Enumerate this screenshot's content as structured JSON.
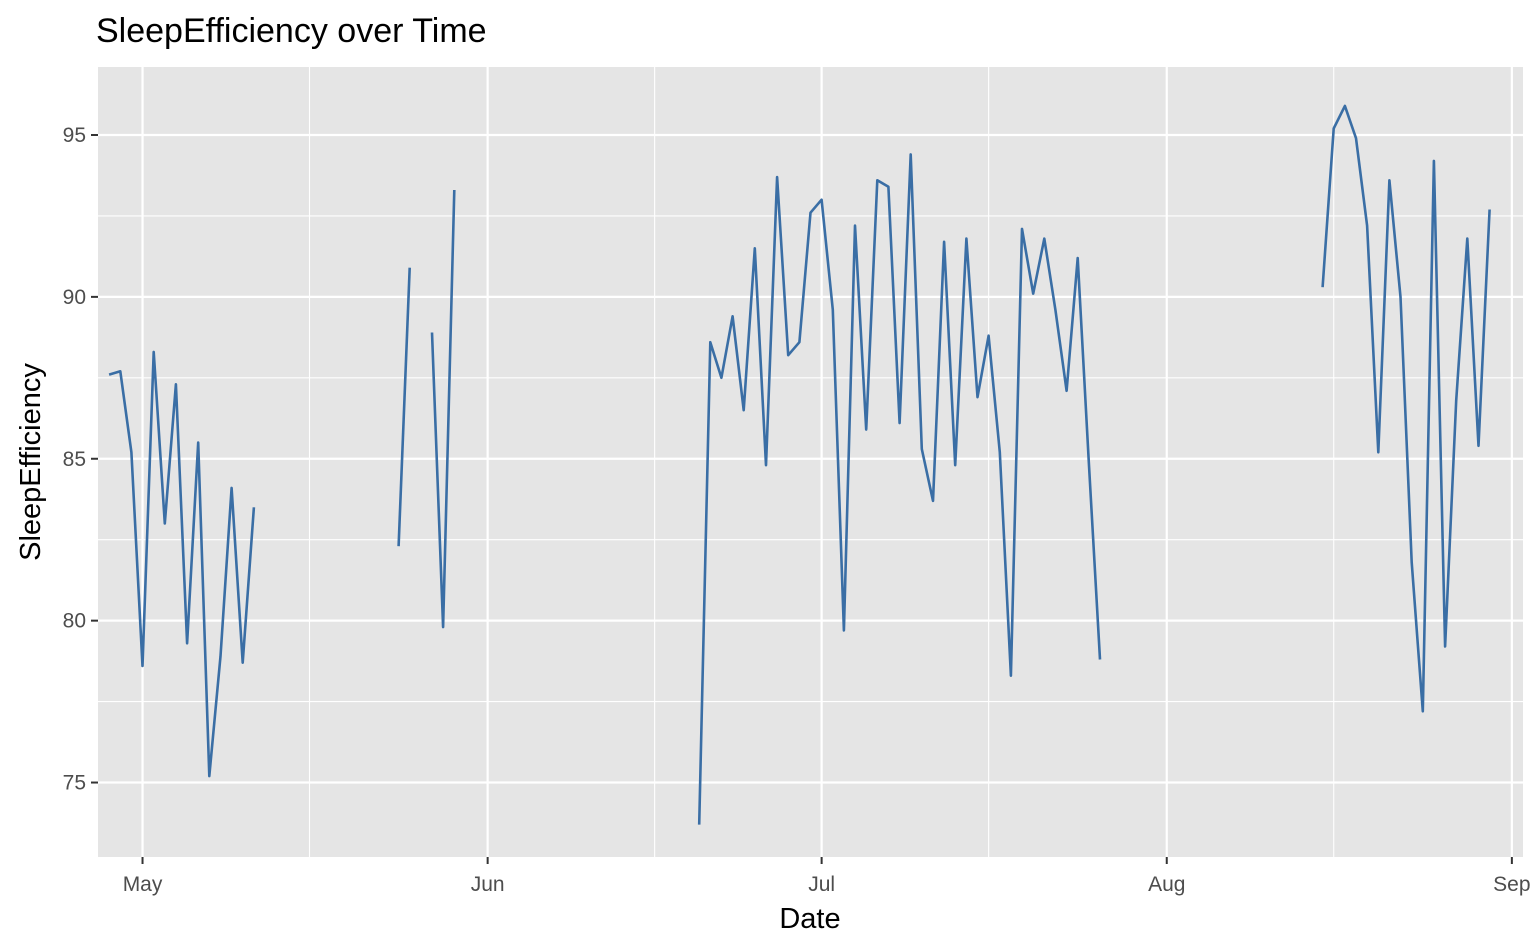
{
  "chart_data": {
    "type": "line",
    "title": "SleepEfficiency over Time",
    "xlabel": "Date",
    "ylabel": "SleepEfficiency",
    "x_range": [
      "2023-04-27",
      "2023-09-02"
    ],
    "ylim": [
      72.7,
      97.1
    ],
    "x_ticks": [
      {
        "date": "2023-05-01",
        "label": "May"
      },
      {
        "date": "2023-06-01",
        "label": "Jun"
      },
      {
        "date": "2023-07-01",
        "label": "Jul"
      },
      {
        "date": "2023-08-01",
        "label": "Aug"
      },
      {
        "date": "2023-09-01",
        "label": "Sep"
      }
    ],
    "x_minor_ticks": [
      "2023-05-16",
      "2023-06-16",
      "2023-07-16",
      "2023-08-16"
    ],
    "y_ticks": [
      75,
      80,
      85,
      90,
      95
    ],
    "y_minor_ticks": [
      77.5,
      82.5,
      87.5,
      92.5
    ],
    "grid": true,
    "colors": {
      "line": "#3a6ea5",
      "panel": "#e5e5e5",
      "grid": "#ffffff"
    },
    "series": [
      {
        "segments": [
          [
            [
              "2023-04-28",
              87.6
            ],
            [
              "2023-04-29",
              87.7
            ],
            [
              "2023-04-30",
              85.2
            ],
            [
              "2023-05-01",
              78.6
            ],
            [
              "2023-05-02",
              88.3
            ],
            [
              "2023-05-03",
              83.0
            ],
            [
              "2023-05-04",
              87.3
            ],
            [
              "2023-05-05",
              79.3
            ],
            [
              "2023-05-06",
              85.5
            ],
            [
              "2023-05-07",
              75.2
            ],
            [
              "2023-05-08",
              78.9
            ],
            [
              "2023-05-09",
              84.1
            ],
            [
              "2023-05-10",
              78.7
            ],
            [
              "2023-05-11",
              83.5
            ]
          ],
          [
            [
              "2023-05-24",
              82.3
            ],
            [
              "2023-05-25",
              90.9
            ]
          ],
          [
            [
              "2023-05-27",
              88.9
            ],
            [
              "2023-05-28",
              79.8
            ],
            [
              "2023-05-29",
              93.3
            ]
          ],
          [
            [
              "2023-06-20",
              73.7
            ],
            [
              "2023-06-21",
              88.6
            ],
            [
              "2023-06-22",
              87.5
            ],
            [
              "2023-06-23",
              89.4
            ],
            [
              "2023-06-24",
              86.5
            ],
            [
              "2023-06-25",
              91.5
            ],
            [
              "2023-06-26",
              84.8
            ],
            [
              "2023-06-27",
              93.7
            ],
            [
              "2023-06-28",
              88.2
            ],
            [
              "2023-06-29",
              88.6
            ],
            [
              "2023-06-30",
              92.6
            ],
            [
              "2023-07-01",
              93.0
            ],
            [
              "2023-07-02",
              89.6
            ],
            [
              "2023-07-03",
              79.7
            ],
            [
              "2023-07-04",
              92.2
            ],
            [
              "2023-07-05",
              85.9
            ],
            [
              "2023-07-06",
              93.6
            ],
            [
              "2023-07-07",
              93.4
            ],
            [
              "2023-07-08",
              86.1
            ],
            [
              "2023-07-09",
              94.4
            ],
            [
              "2023-07-10",
              85.3
            ],
            [
              "2023-07-11",
              83.7
            ],
            [
              "2023-07-12",
              91.7
            ],
            [
              "2023-07-13",
              84.8
            ],
            [
              "2023-07-14",
              91.8
            ],
            [
              "2023-07-15",
              86.9
            ],
            [
              "2023-07-16",
              88.8
            ],
            [
              "2023-07-17",
              85.2
            ],
            [
              "2023-07-18",
              78.3
            ],
            [
              "2023-07-19",
              92.1
            ],
            [
              "2023-07-20",
              90.1
            ],
            [
              "2023-07-21",
              91.8
            ],
            [
              "2023-07-22",
              89.6
            ],
            [
              "2023-07-23",
              87.1
            ],
            [
              "2023-07-24",
              91.2
            ],
            [
              "2023-07-25",
              84.9
            ],
            [
              "2023-07-26",
              78.8
            ]
          ],
          [
            [
              "2023-08-15",
              90.3
            ],
            [
              "2023-08-16",
              95.2
            ],
            [
              "2023-08-17",
              95.9
            ],
            [
              "2023-08-18",
              94.9
            ],
            [
              "2023-08-19",
              92.2
            ],
            [
              "2023-08-20",
              85.2
            ],
            [
              "2023-08-21",
              93.6
            ],
            [
              "2023-08-22",
              90.0
            ],
            [
              "2023-08-23",
              81.8
            ],
            [
              "2023-08-24",
              77.2
            ],
            [
              "2023-08-25",
              94.2
            ],
            [
              "2023-08-26",
              79.2
            ],
            [
              "2023-08-27",
              86.8
            ],
            [
              "2023-08-28",
              91.8
            ],
            [
              "2023-08-29",
              85.4
            ],
            [
              "2023-08-30",
              92.7
            ]
          ]
        ]
      }
    ]
  }
}
